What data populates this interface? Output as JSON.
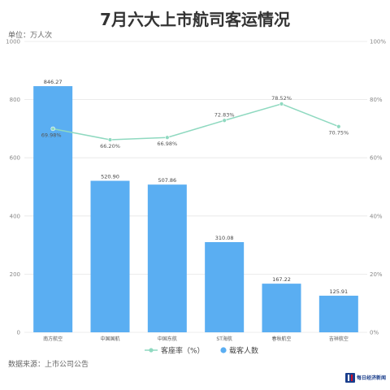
{
  "title": "7月六大上市航司客运情况",
  "unit_label": "单位：万人次",
  "source": "数据来源：上市公司公告",
  "logo_text": "每日经济新闻",
  "colors": {
    "bar": "#5aaef2",
    "line": "#8fd9c0",
    "text": "#333333"
  },
  "chart_data": {
    "type": "bar",
    "categories": [
      "南方航空",
      "中国国航",
      "中国东航",
      "ST海航",
      "春秋航空",
      "吉祥航空"
    ],
    "series": [
      {
        "name": "载客人数",
        "type": "bar",
        "axis": "left",
        "values": [
          846.27,
          520.9,
          507.86,
          310.08,
          167.22,
          125.91
        ]
      },
      {
        "name": "客座率（%）",
        "type": "line",
        "axis": "right",
        "values": [
          69.98,
          66.2,
          66.98,
          72.83,
          78.52,
          70.75
        ]
      }
    ],
    "y_left": {
      "lim": [
        0,
        1000
      ],
      "ticks": [
        "0",
        "200",
        "400",
        "600",
        "800",
        "1000"
      ]
    },
    "y_right": {
      "lim": [
        0,
        100
      ],
      "ticks": [
        "0%",
        "20%",
        "40%",
        "60%",
        "80%",
        "100%"
      ]
    },
    "bar_labels": [
      "846.27",
      "520.90",
      "507.86",
      "310.08",
      "167.22",
      "125.91"
    ],
    "line_labels": [
      "69.98%",
      "66.20%",
      "66.98%",
      "72.83%",
      "78.52%",
      "70.75%"
    ],
    "legend": {
      "position": "bottom",
      "items": [
        "客座率（%）",
        "载客人数"
      ]
    },
    "grid": true
  }
}
